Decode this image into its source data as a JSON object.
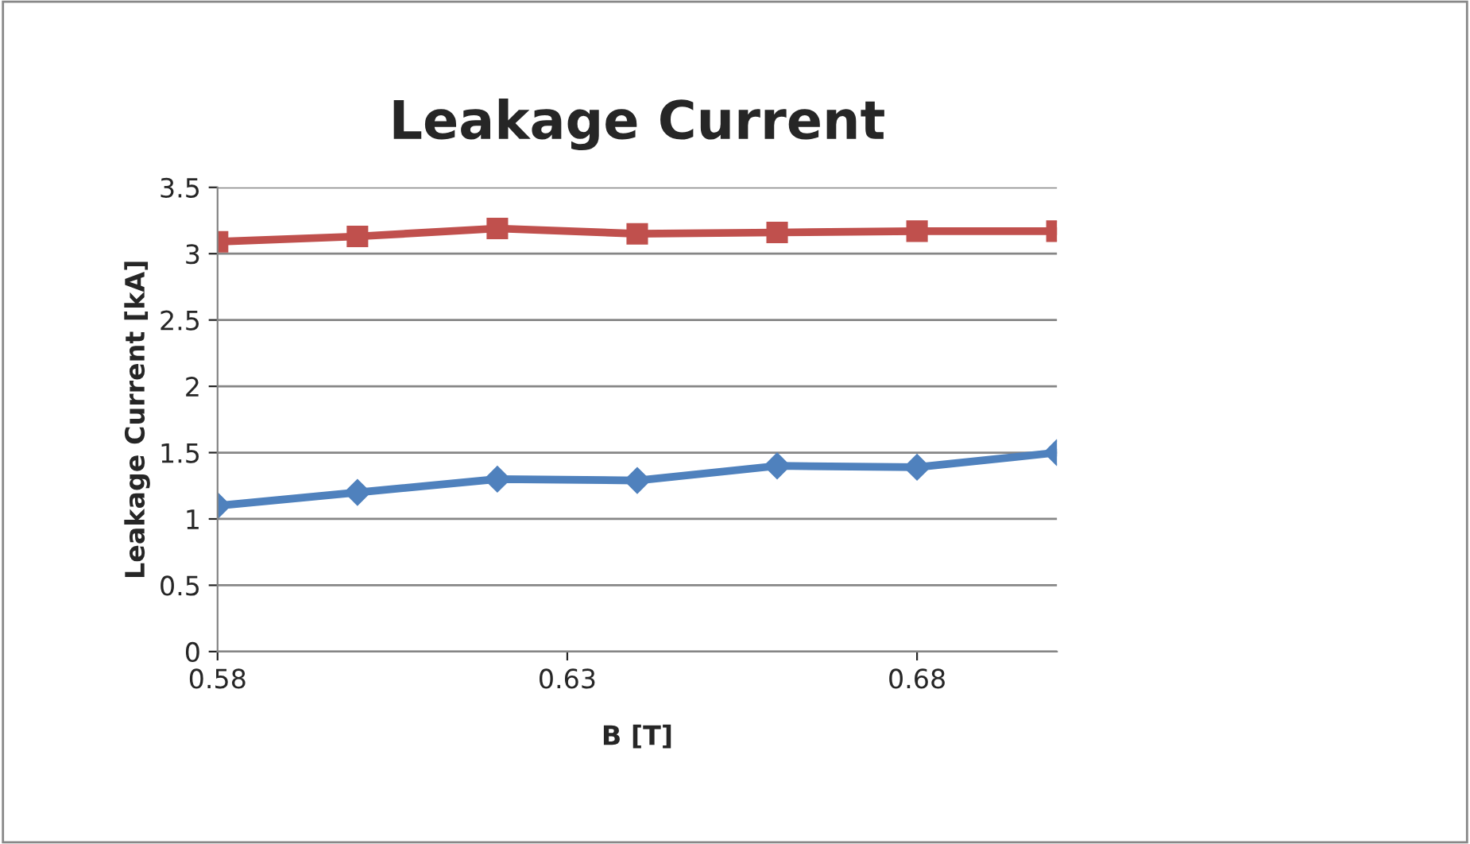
{
  "chart_data": {
    "type": "line",
    "title": "Leakage Current",
    "xlabel": "B [T]",
    "ylabel": "Leakage Current [kA]",
    "x": [
      0.58,
      0.6,
      0.62,
      0.64,
      0.66,
      0.68,
      0.7
    ],
    "series": [
      {
        "color": "#4f81bd",
        "marker": "diamond",
        "values": [
          1.1,
          1.2,
          1.3,
          1.29,
          1.4,
          1.39,
          1.5
        ]
      },
      {
        "color": "#c0504d",
        "marker": "square",
        "values": [
          3.09,
          3.13,
          3.19,
          3.15,
          3.16,
          3.17,
          3.17
        ]
      }
    ],
    "xlim": [
      0.58,
      0.7
    ],
    "xticks": [
      0.58,
      0.63,
      0.68
    ],
    "ylim": [
      0,
      3.5
    ],
    "yticks": [
      0,
      0.5,
      1,
      1.5,
      2,
      2.5,
      3,
      3.5
    ],
    "grid": "y",
    "line_style": "solid"
  }
}
